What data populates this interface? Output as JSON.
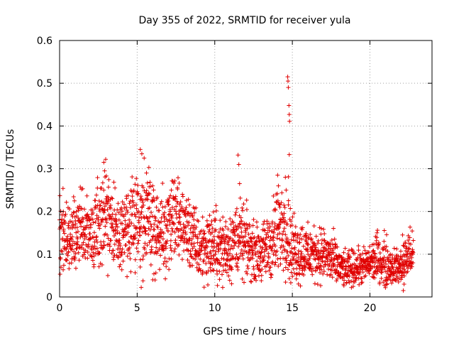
{
  "chart_data": {
    "type": "scatter",
    "title": "Day 355 of 2022, SRMTID for receiver yula",
    "xlabel": "GPS time / hours",
    "ylabel": "SRMTID / TECUs",
    "xlim": [
      0,
      24
    ],
    "ylim": [
      0,
      0.6
    ],
    "x_ticks": [
      0,
      5,
      10,
      15,
      20
    ],
    "x_tick_labels": [
      "0",
      "5",
      "10",
      "15",
      "20"
    ],
    "y_ticks": [
      0,
      0.1,
      0.2,
      0.3,
      0.4,
      0.5,
      0.6
    ],
    "y_tick_labels": [
      "0",
      "0.1",
      "0.2",
      "0.3",
      "0.4",
      "0.5",
      "0.6"
    ],
    "grid": true,
    "marker": "+",
    "series_color": "#e00000",
    "series": [
      {
        "name": "SRMTID",
        "x_start": 0,
        "x_end": 22.8,
        "envelope": [
          [
            0.0,
            0.16,
            0.05
          ],
          [
            0.5,
            0.13,
            0.04
          ],
          [
            1.0,
            0.15,
            0.05
          ],
          [
            1.5,
            0.16,
            0.04
          ],
          [
            2.0,
            0.15,
            0.04
          ],
          [
            2.5,
            0.18,
            0.05
          ],
          [
            3.0,
            0.19,
            0.05
          ],
          [
            3.5,
            0.16,
            0.04
          ],
          [
            4.0,
            0.14,
            0.04
          ],
          [
            4.5,
            0.17,
            0.05
          ],
          [
            5.0,
            0.17,
            0.06
          ],
          [
            5.5,
            0.2,
            0.06
          ],
          [
            6.0,
            0.17,
            0.06
          ],
          [
            6.5,
            0.14,
            0.05
          ],
          [
            7.0,
            0.16,
            0.05
          ],
          [
            7.5,
            0.18,
            0.05
          ],
          [
            8.0,
            0.17,
            0.04
          ],
          [
            8.5,
            0.14,
            0.04
          ],
          [
            9.0,
            0.11,
            0.04
          ],
          [
            9.5,
            0.12,
            0.04
          ],
          [
            10.0,
            0.12,
            0.04
          ],
          [
            10.5,
            0.11,
            0.04
          ],
          [
            11.0,
            0.12,
            0.04
          ],
          [
            11.5,
            0.14,
            0.04
          ],
          [
            12.0,
            0.12,
            0.04
          ],
          [
            12.5,
            0.11,
            0.03
          ],
          [
            13.0,
            0.1,
            0.03
          ],
          [
            13.5,
            0.12,
            0.04
          ],
          [
            14.0,
            0.15,
            0.05
          ],
          [
            14.5,
            0.17,
            0.05
          ],
          [
            15.0,
            0.11,
            0.04
          ],
          [
            15.5,
            0.11,
            0.04
          ],
          [
            16.0,
            0.1,
            0.03
          ],
          [
            16.5,
            0.1,
            0.03
          ],
          [
            17.0,
            0.1,
            0.03
          ],
          [
            17.5,
            0.09,
            0.03
          ],
          [
            18.0,
            0.07,
            0.02
          ],
          [
            18.5,
            0.06,
            0.02
          ],
          [
            19.0,
            0.07,
            0.02
          ],
          [
            19.5,
            0.07,
            0.02
          ],
          [
            20.0,
            0.08,
            0.02
          ],
          [
            20.5,
            0.09,
            0.03
          ],
          [
            21.0,
            0.08,
            0.03
          ],
          [
            21.5,
            0.07,
            0.02
          ],
          [
            22.0,
            0.07,
            0.02
          ],
          [
            22.5,
            0.1,
            0.03
          ],
          [
            22.8,
            0.1,
            0.02
          ]
        ],
        "spikes": [
          [
            2.85,
            0.315
          ],
          [
            2.9,
            0.295
          ],
          [
            5.2,
            0.345
          ],
          [
            5.3,
            0.335
          ],
          [
            5.45,
            0.325
          ],
          [
            5.6,
            0.29
          ],
          [
            6.0,
            0.26
          ],
          [
            7.2,
            0.25
          ],
          [
            11.5,
            0.332
          ],
          [
            11.55,
            0.31
          ],
          [
            11.6,
            0.265
          ],
          [
            14.05,
            0.285
          ],
          [
            14.1,
            0.26
          ],
          [
            14.55,
            0.28
          ],
          [
            14.6,
            0.25
          ],
          [
            14.7,
            0.515
          ],
          [
            14.72,
            0.505
          ],
          [
            14.74,
            0.49
          ],
          [
            14.78,
            0.448
          ],
          [
            14.8,
            0.427
          ],
          [
            14.82,
            0.411
          ],
          [
            14.8,
            0.333
          ],
          [
            14.75,
            0.281
          ],
          [
            16.0,
            0.175
          ],
          [
            22.1,
            0.145
          ],
          [
            22.15,
            0.015
          ],
          [
            22.2,
            0.03
          ]
        ]
      }
    ]
  }
}
